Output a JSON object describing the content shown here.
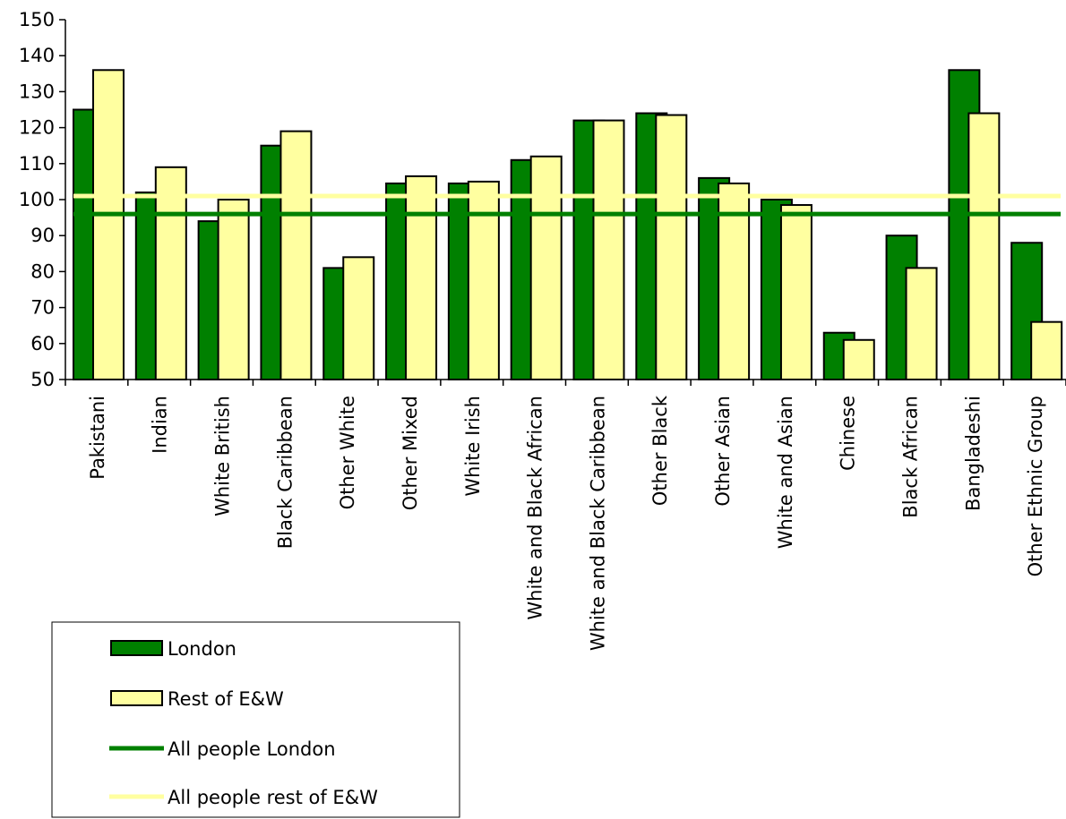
{
  "chart_data": {
    "type": "bar",
    "categories": [
      "Pakistani",
      "Indian",
      "White British",
      "Black Caribbean",
      "Other White",
      "Other Mixed",
      "White Irish",
      "White and Black African",
      "White and Black Caribbean",
      "Other Black",
      "Other Asian",
      "White and Asian",
      "Chinese",
      "Black African",
      "Bangladeshi",
      "Other Ethnic Group"
    ],
    "series": [
      {
        "name": "London",
        "color": "#008000",
        "values": [
          125,
          102,
          94,
          115,
          81,
          104.5,
          104.5,
          111,
          122,
          124,
          106,
          100,
          63,
          90,
          136,
          88
        ]
      },
      {
        "name": "Rest of E&W",
        "color": "#ffffa0",
        "values": [
          136,
          109,
          100,
          119,
          84,
          106.5,
          105,
          112,
          122,
          123.5,
          104.5,
          98.5,
          61,
          81,
          124,
          66
        ]
      }
    ],
    "reference_lines": [
      {
        "name": "All people London",
        "value": 96,
        "color": "#008000"
      },
      {
        "name": "All people rest of E&W",
        "value": 101,
        "color": "#ffffa0"
      }
    ],
    "ylim": [
      50,
      150
    ],
    "yticks": [
      50,
      60,
      70,
      80,
      90,
      100,
      110,
      120,
      130,
      140,
      150
    ],
    "legend_position": "bottom-left",
    "grid": false,
    "title": "",
    "xlabel": "",
    "ylabel": ""
  }
}
